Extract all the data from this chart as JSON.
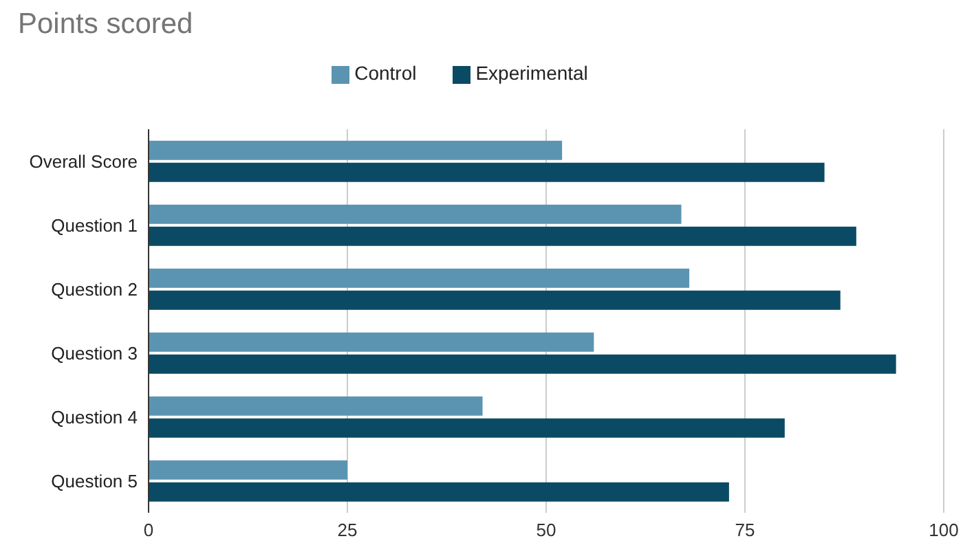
{
  "chart_data": {
    "type": "bar",
    "orientation": "horizontal",
    "title": "Points scored",
    "categories": [
      "Overall Score",
      "Question 1",
      "Question 2",
      "Question 3",
      "Question 4",
      "Question 5"
    ],
    "series": [
      {
        "name": "Control",
        "color": "#5b94b1",
        "values": [
          52,
          67,
          68,
          56,
          42,
          25
        ]
      },
      {
        "name": "Experimental",
        "color": "#0b4a64",
        "values": [
          85,
          89,
          87,
          94,
          80,
          73
        ]
      }
    ],
    "xlim": [
      0,
      100
    ],
    "xticks": [
      0,
      25,
      50,
      75,
      100
    ],
    "grid": "x",
    "legend": "top"
  }
}
